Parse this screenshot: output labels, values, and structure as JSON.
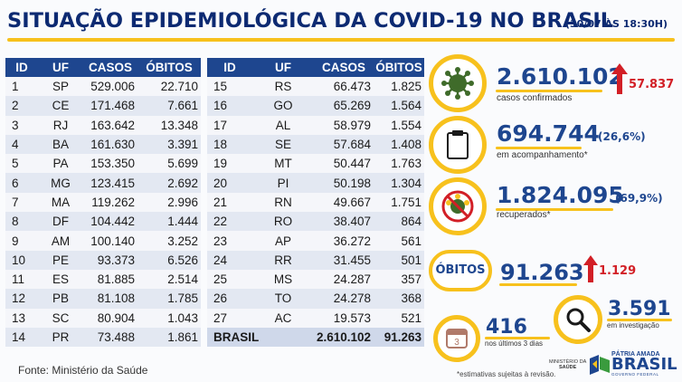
{
  "header": {
    "title": "SITUAÇÃO EPIDEMIOLÓGICA DA COVID-19 NO BRASIL",
    "date": "(30/07 ÀS 18:30H)"
  },
  "table_headers": [
    "ID",
    "UF",
    "CASOS",
    "ÓBITOS"
  ],
  "table_left": [
    [
      "1",
      "SP",
      "529.006",
      "22.710"
    ],
    [
      "2",
      "CE",
      "171.468",
      "7.661"
    ],
    [
      "3",
      "RJ",
      "163.642",
      "13.348"
    ],
    [
      "4",
      "BA",
      "161.630",
      "3.391"
    ],
    [
      "5",
      "PA",
      "153.350",
      "5.699"
    ],
    [
      "6",
      "MG",
      "123.415",
      "2.692"
    ],
    [
      "7",
      "MA",
      "119.262",
      "2.996"
    ],
    [
      "8",
      "DF",
      "104.442",
      "1.444"
    ],
    [
      "9",
      "AM",
      "100.140",
      "3.252"
    ],
    [
      "10",
      "PE",
      "93.373",
      "6.526"
    ],
    [
      "11",
      "ES",
      "81.885",
      "2.514"
    ],
    [
      "12",
      "PB",
      "81.108",
      "1.785"
    ],
    [
      "13",
      "SC",
      "80.904",
      "1.043"
    ],
    [
      "14",
      "PR",
      "73.488",
      "1.861"
    ]
  ],
  "table_right": [
    [
      "15",
      "RS",
      "66.473",
      "1.825"
    ],
    [
      "16",
      "GO",
      "65.269",
      "1.564"
    ],
    [
      "17",
      "AL",
      "58.979",
      "1.554"
    ],
    [
      "18",
      "SE",
      "57.684",
      "1.408"
    ],
    [
      "19",
      "MT",
      "50.447",
      "1.763"
    ],
    [
      "20",
      "PI",
      "50.198",
      "1.304"
    ],
    [
      "21",
      "RN",
      "49.667",
      "1.751"
    ],
    [
      "22",
      "RO",
      "38.407",
      "864"
    ],
    [
      "23",
      "AP",
      "36.272",
      "561"
    ],
    [
      "24",
      "RR",
      "31.455",
      "501"
    ],
    [
      "25",
      "MS",
      "24.287",
      "357"
    ],
    [
      "26",
      "TO",
      "24.278",
      "368"
    ],
    [
      "27",
      "AC",
      "19.573",
      "521"
    ]
  ],
  "total": {
    "label": "BRASIL",
    "casos": "2.610.102",
    "obitos": "91.263"
  },
  "stats": {
    "confirmados": {
      "value": "2.610.102",
      "label": "casos confirmados",
      "increase": "57.837"
    },
    "acompanhamento": {
      "value": "694.744",
      "pct": "(26,6%)",
      "label": "em acompanhamento*"
    },
    "recuperados": {
      "value": "1.824.095",
      "pct": "(69,9%)",
      "label": "recuperados*"
    },
    "obitos": {
      "badge": "ÓBITOS",
      "value": "91.263",
      "increase": "1.129"
    },
    "investigacao": {
      "value": "3.591",
      "label": "em investigação"
    },
    "ultimos": {
      "value": "416",
      "label": "nos últimos 3 dias",
      "calendar_num": "3"
    }
  },
  "source": "Fonte: Ministério da Saúde",
  "footnote": "*estimativas sujeitas à revisão.",
  "logos": {
    "ministerio": [
      "MINISTÉRIO DA",
      "SAÚDE"
    ],
    "patria": "PÁTRIA AMADA",
    "brasil": "BRASIL",
    "governo": "GOVERNO FEDERAL"
  },
  "colors": {
    "navy": "#1e468f",
    "title": "#0d2a72",
    "yellow": "#f7c11d",
    "red": "#d21f26",
    "virus_green": "#3f6b2a"
  },
  "icons": [
    "virus-icon",
    "clipboard-icon",
    "crossed-virus-icon",
    "red-up-arrow-icon",
    "magnifier-icon",
    "calendar-icon",
    "flag-logo-icon"
  ]
}
